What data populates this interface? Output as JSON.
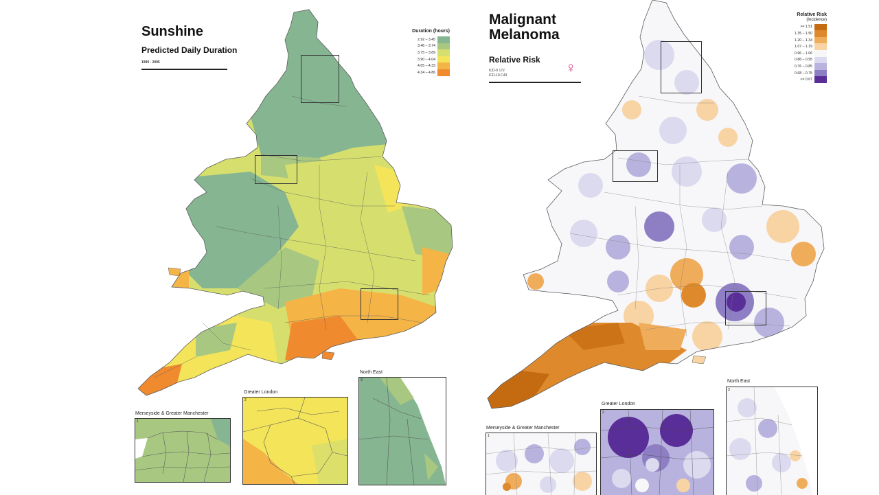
{
  "sunshine": {
    "title": "Sunshine",
    "subtitle": "Predicted Daily Duration",
    "period": "1990 - 2005",
    "legend": {
      "title": "Duration (hours)",
      "items": [
        {
          "label": "2.92 – 3.45",
          "color": "#86b592"
        },
        {
          "label": "3.46 – 3.74",
          "color": "#a8c882"
        },
        {
          "label": "3.75 – 3.89",
          "color": "#d6df6e"
        },
        {
          "label": "3.90 – 4.04",
          "color": "#f3e459"
        },
        {
          "label": "4.05 – 4.33",
          "color": "#f5b446"
        },
        {
          "label": "4.34 – 4.86",
          "color": "#ef8a2e"
        }
      ]
    },
    "insets": {
      "merseyside": {
        "label": "Merseyside & Greater Manchester",
        "number": "1"
      },
      "london": {
        "label": "Greater London",
        "number": "2"
      },
      "northeast": {
        "label": "North East",
        "number": "3"
      }
    }
  },
  "melanoma": {
    "title": "Malignant Melanoma",
    "subtitle": "Relative Risk",
    "icd9": "ICD-9   172",
    "icd10": "ICD-10  C43",
    "sex_icon": "female-symbol-icon",
    "legend": {
      "title": "Relative Risk",
      "subtitle": "(Incidence)",
      "items": [
        {
          "label": ">= 1.51",
          "color": "#c46a10"
        },
        {
          "label": "1.35 – 1.50",
          "color": "#de8a2c"
        },
        {
          "label": "1.20 – 1.34",
          "color": "#efac5b"
        },
        {
          "label": "1.07 – 1.19",
          "color": "#f8d3a3"
        },
        {
          "label": "0.96 – 1.06",
          "color": "#f7f6f8"
        },
        {
          "label": "0.86 – 0.95",
          "color": "#dcdaef"
        },
        {
          "label": "0.76 – 0.85",
          "color": "#b8b3de"
        },
        {
          "label": "0.68 – 0.75",
          "color": "#8e7fc4"
        },
        {
          "label": "<= 0.67",
          "color": "#5a2e98"
        }
      ]
    },
    "insets": {
      "merseyside": {
        "label": "Merseyside & Greater Manchester",
        "number": "1"
      },
      "london": {
        "label": "Greater London",
        "number": "2"
      },
      "northeast": {
        "label": "North East",
        "number": "3"
      }
    }
  }
}
